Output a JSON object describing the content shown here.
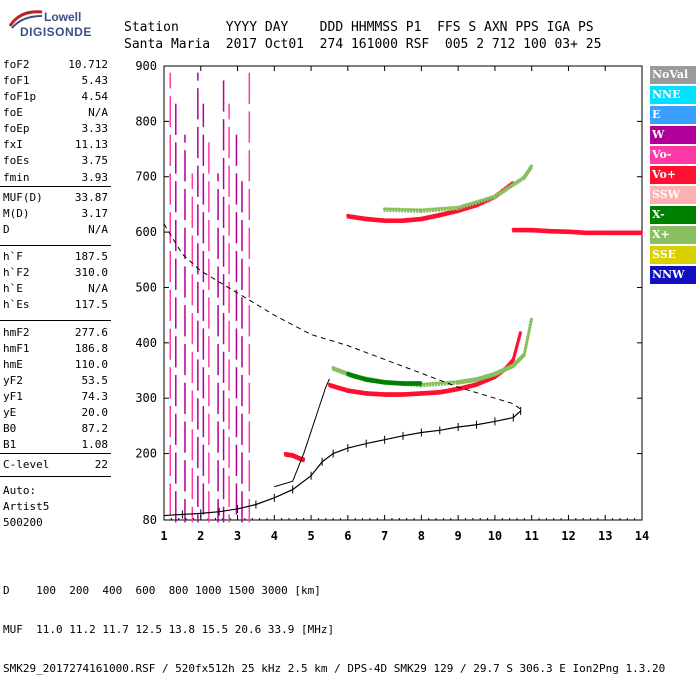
{
  "logo": {
    "line1": "Lowell",
    "line2": "DIGISONDE"
  },
  "header": {
    "labels": "Station      YYYY DAY    DDD HHMMSS P1  FFS S AXN PPS IGA PS",
    "values": "Santa Maria  2017 Oct01  274 161000 RSF  005 2 712 100 03+ 25"
  },
  "params": [
    {
      "label": "foF2",
      "value": "10.712"
    },
    {
      "label": "foF1",
      "value": "5.43"
    },
    {
      "label": "foF1p",
      "value": "4.54"
    },
    {
      "label": "foE",
      "value": "N/A"
    },
    {
      "label": "foEp",
      "value": "3.33"
    },
    {
      "label": "fxI",
      "value": "11.13"
    },
    {
      "label": "foEs",
      "value": "3.75"
    },
    {
      "label": "fmin",
      "value": "3.93"
    },
    {
      "label": "MUF(D)",
      "value": "33.87"
    },
    {
      "label": "M(D)",
      "value": "3.17"
    },
    {
      "label": "D",
      "value": "N/A"
    },
    {
      "label": "h`F",
      "value": "187.5"
    },
    {
      "label": "h`F2",
      "value": "310.0"
    },
    {
      "label": "h`E",
      "value": "N/A"
    },
    {
      "label": "h`Es",
      "value": "117.5"
    },
    {
      "label": "hmF2",
      "value": "277.6"
    },
    {
      "label": "hmF1",
      "value": "186.8"
    },
    {
      "label": "hmE",
      "value": "110.0"
    },
    {
      "label": "yF2",
      "value": "53.5"
    },
    {
      "label": "yF1",
      "value": "74.3"
    },
    {
      "label": "yE",
      "value": "20.0"
    },
    {
      "label": "B0",
      "value": "87.2"
    },
    {
      "label": "B1",
      "value": "1.08"
    },
    {
      "label": "C-level",
      "value": "22"
    }
  ],
  "auto": {
    "line1": "Auto:",
    "line2": "Artist5",
    "line3": "500200"
  },
  "legend": [
    {
      "label": "NoVal",
      "color": "#9a9a9a"
    },
    {
      "label": "NNE",
      "color": "#00e0ff"
    },
    {
      "label": "E",
      "color": "#3aa0ff"
    },
    {
      "label": "W",
      "color": "#b0009a"
    },
    {
      "label": "Vo-",
      "color": "#ff3aa8"
    },
    {
      "label": "Vo+",
      "color": "#ff1030"
    },
    {
      "label": "SSW",
      "color": "#ffb0b0"
    },
    {
      "label": "X-",
      "color": "#008000"
    },
    {
      "label": "X+",
      "color": "#88c060"
    },
    {
      "label": "SSE",
      "color": "#d8d000"
    },
    {
      "label": "NNW",
      "color": "#1010c0"
    }
  ],
  "footer": {
    "line1": "D    100  200  400  600  800 1000 1500 3000 [km]",
    "line2": "MUF  11.0 11.2 11.7 12.5 13.8 15.5 20.6 33.9 [MHz]",
    "line3": "SMK29_2017274161000.RSF / 520fx512h 25 kHz 2.5 km / DPS-4D SMK29 129 / 29.7 S 306.3 E Ion2Png 1.3.20"
  },
  "chart_data": {
    "type": "scatter",
    "xlim": [
      1,
      14
    ],
    "ylim": [
      80,
      900
    ],
    "xticks": [
      "1",
      "2",
      "3",
      "4",
      "5",
      "6",
      "7",
      "8",
      "9",
      "10",
      "11",
      "12",
      "13",
      "14"
    ],
    "yticks": [
      "80",
      "200",
      "300",
      "400",
      "500",
      "600",
      "700",
      "800",
      "900"
    ],
    "series": [
      {
        "name": "Vo+",
        "color": "#ff1030",
        "x": [
          5.5,
          6.0,
          6.5,
          7.0,
          7.5,
          8.0,
          8.5,
          9.0,
          9.5,
          10.0,
          10.3,
          10.5,
          10.7
        ],
        "y": [
          325,
          315,
          310,
          308,
          308,
          310,
          312,
          318,
          326,
          340,
          355,
          370,
          420
        ]
      },
      {
        "name": "X+",
        "color": "#88c060",
        "x": [
          5.6,
          6.2,
          7.0,
          8.0,
          9.0,
          9.5,
          10.0,
          10.5,
          10.8,
          11.0
        ],
        "y": [
          355,
          340,
          330,
          325,
          330,
          335,
          345,
          360,
          380,
          445
        ]
      },
      {
        "name": "X-",
        "color": "#008000",
        "x": [
          6.0,
          6.5,
          7.0,
          7.5,
          8.0
        ],
        "y": [
          345,
          335,
          330,
          328,
          328
        ]
      },
      {
        "name": "Vo+ (2-hop)",
        "color": "#ff1030",
        "x": [
          6.0,
          6.5,
          7.0,
          7.5,
          8.0,
          8.5,
          9.0,
          9.5,
          10.0,
          10.5
        ],
        "y": [
          630,
          625,
          622,
          622,
          625,
          632,
          640,
          650,
          665,
          690
        ]
      },
      {
        "name": "X+ (2-hop)",
        "color": "#88c060",
        "x": [
          7.0,
          8.0,
          9.0,
          10.0,
          10.8,
          11.0
        ],
        "y": [
          642,
          640,
          645,
          665,
          700,
          720
        ]
      },
      {
        "name": "Vo+ (trace)",
        "color": "#ff1030",
        "x": [
          10.5,
          11.0,
          11.5,
          12.0,
          12.5,
          13.0,
          13.5,
          14.0
        ],
        "y": [
          605,
          605,
          603,
          602,
          600,
          600,
          600,
          600
        ]
      },
      {
        "name": "Es",
        "color": "#ff1030",
        "x": [
          4.3,
          4.5,
          4.7,
          4.8
        ],
        "y": [
          200,
          198,
          192,
          190
        ]
      }
    ],
    "profile": {
      "x": [
        1.0,
        1.5,
        2.0,
        2.5,
        3.0,
        3.5,
        4.0,
        4.5,
        5.0,
        5.3,
        5.6,
        6.0,
        6.5,
        7.0,
        7.5,
        8.0,
        8.5,
        9.0,
        9.5,
        10.0,
        10.5,
        10.7
      ],
      "y": [
        88,
        90,
        92,
        95,
        100,
        108,
        120,
        135,
        160,
        185,
        200,
        210,
        218,
        225,
        232,
        238,
        242,
        248,
        252,
        258,
        265,
        277
      ]
    },
    "trace": {
      "x": [
        4.0,
        4.5,
        4.8,
        5.0,
        5.2,
        5.4,
        5.5
      ],
      "y": [
        140,
        150,
        200,
        240,
        280,
        320,
        335
      ]
    },
    "muf": {
      "x": [
        1.0,
        1.5,
        2.0,
        3.0,
        4.0,
        5.0,
        6.0,
        7.0,
        8.0,
        9.0,
        10.0,
        10.5,
        10.7
      ],
      "y": [
        615,
        560,
        530,
        490,
        450,
        415,
        395,
        370,
        345,
        320,
        300,
        290,
        280
      ]
    }
  }
}
